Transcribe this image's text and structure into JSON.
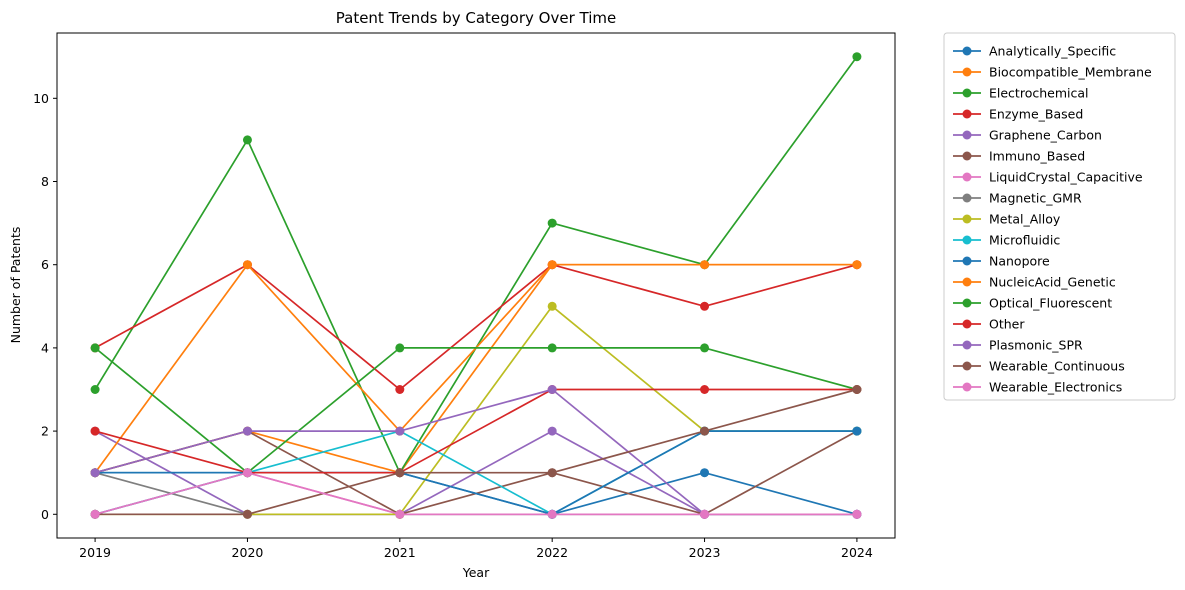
{
  "chart_data": {
    "type": "line",
    "title": "Patent Trends by Category Over Time",
    "xlabel": "Year",
    "ylabel": "Number of Patents",
    "x": [
      "2019",
      "2020",
      "2021",
      "2022",
      "2023",
      "2024"
    ],
    "xlim": [
      2018.75,
      2024.25
    ],
    "ylim": [
      -0.57,
      11.57
    ],
    "yticks": [
      0,
      2,
      4,
      6,
      8,
      10
    ],
    "grid": false,
    "legend_position": "outside-right",
    "marker": "circle",
    "series": [
      {
        "name": "Analytically_Specific",
        "color": "#1f77b4",
        "values": [
          1,
          1,
          1,
          0,
          1,
          0
        ]
      },
      {
        "name": "Biocompatible_Membrane",
        "color": "#ff7f0e",
        "values": [
          1,
          2,
          1,
          6,
          6,
          6
        ]
      },
      {
        "name": "Electrochemical",
        "color": "#2ca02c",
        "values": [
          3,
          9,
          1,
          7,
          6,
          11
        ]
      },
      {
        "name": "Enzyme_Based",
        "color": "#d62728",
        "values": [
          4,
          6,
          3,
          6,
          5,
          6
        ]
      },
      {
        "name": "Graphene_Carbon",
        "color": "#9467bd",
        "values": [
          2,
          0,
          0,
          2,
          0,
          0
        ]
      },
      {
        "name": "Immuno_Based",
        "color": "#8c564b",
        "values": [
          1,
          2,
          0,
          1,
          0,
          2
        ]
      },
      {
        "name": "LiquidCrystal_Capacitive",
        "color": "#e377c2",
        "values": [
          0,
          1,
          0,
          0,
          0,
          0
        ]
      },
      {
        "name": "Magnetic_GMR",
        "color": "#7f7f7f",
        "values": [
          1,
          0,
          0,
          0,
          0,
          0
        ]
      },
      {
        "name": "Metal_Alloy",
        "color": "#bcbd22",
        "values": [
          0,
          0,
          0,
          5,
          2,
          2
        ]
      },
      {
        "name": "Microfluidic",
        "color": "#17becf",
        "values": [
          0,
          1,
          2,
          0,
          2,
          2
        ]
      },
      {
        "name": "Nanopore",
        "color": "#1f77b4",
        "values": [
          1,
          1,
          1,
          0,
          2,
          2
        ]
      },
      {
        "name": "NucleicAcid_Genetic",
        "color": "#ff7f0e",
        "values": [
          1,
          6,
          2,
          6,
          6,
          6
        ]
      },
      {
        "name": "Optical_Fluorescent",
        "color": "#2ca02c",
        "values": [
          4,
          1,
          4,
          4,
          4,
          3
        ]
      },
      {
        "name": "Other",
        "color": "#d62728",
        "values": [
          2,
          1,
          1,
          3,
          3,
          3
        ]
      },
      {
        "name": "Plasmonic_SPR",
        "color": "#9467bd",
        "values": [
          1,
          2,
          2,
          3,
          0,
          0
        ]
      },
      {
        "name": "Wearable_Continuous",
        "color": "#8c564b",
        "values": [
          0,
          0,
          1,
          1,
          2,
          3
        ]
      },
      {
        "name": "Wearable_Electronics",
        "color": "#e377c2",
        "values": [
          0,
          1,
          0,
          0,
          0,
          0
        ]
      }
    ]
  }
}
